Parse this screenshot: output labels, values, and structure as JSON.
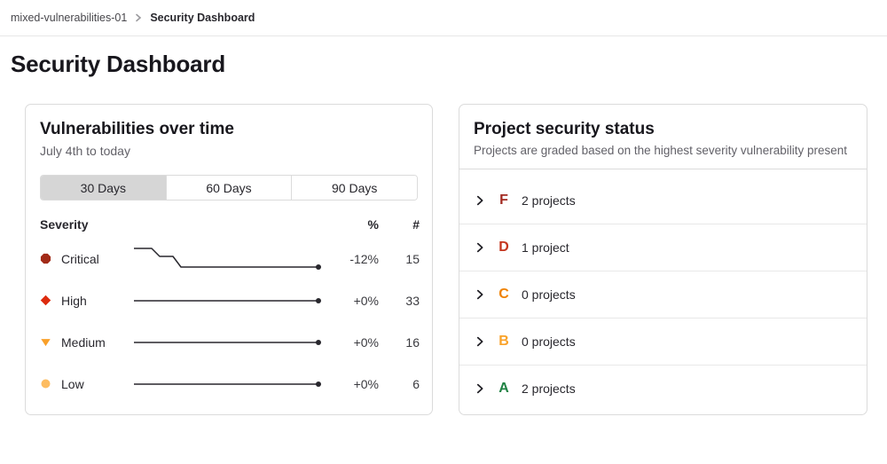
{
  "breadcrumb": {
    "project": "mixed-vulnerabilities-01",
    "current": "Security Dashboard"
  },
  "page": {
    "title": "Security Dashboard"
  },
  "vuln_card": {
    "title": "Vulnerabilities over time",
    "subtitle": "July 4th to today",
    "tabs": [
      {
        "label": "30 Days",
        "selected": true
      },
      {
        "label": "60 Days",
        "selected": false
      },
      {
        "label": "90 Days",
        "selected": false
      }
    ],
    "table": {
      "severity_header": "Severity",
      "percent_header": "%",
      "count_header": "#",
      "sparkline_color": "#28272d",
      "rows": [
        {
          "severity": "Critical",
          "icon": "severity-critical-icon",
          "icon_color": "#a22b18",
          "trend": "down",
          "percent": "-12%",
          "count": "15"
        },
        {
          "severity": "High",
          "icon": "severity-high-icon",
          "icon_color": "#dd2b0e",
          "trend": "flat",
          "percent": "+0%",
          "count": "33"
        },
        {
          "severity": "Medium",
          "icon": "severity-medium-icon",
          "icon_color": "#f9a029",
          "trend": "flat",
          "percent": "+0%",
          "count": "16"
        },
        {
          "severity": "Low",
          "icon": "severity-low-icon",
          "icon_color": "#fdbc60",
          "trend": "flat",
          "percent": "+0%",
          "count": "6"
        }
      ]
    }
  },
  "status_card": {
    "title": "Project security status",
    "subtitle": "Projects are graded based on the highest severity vulnerability present",
    "rows": [
      {
        "grade": "F",
        "grade_color": "#a32b22",
        "label": "2 projects"
      },
      {
        "grade": "D",
        "grade_color": "#c4361f",
        "label": "1 project"
      },
      {
        "grade": "C",
        "grade_color": "#ef8100",
        "label": "0 projects"
      },
      {
        "grade": "B",
        "grade_color": "#f9a229",
        "label": "0 projects"
      },
      {
        "grade": "A",
        "grade_color": "#1f8243",
        "label": "2 projects"
      }
    ]
  }
}
